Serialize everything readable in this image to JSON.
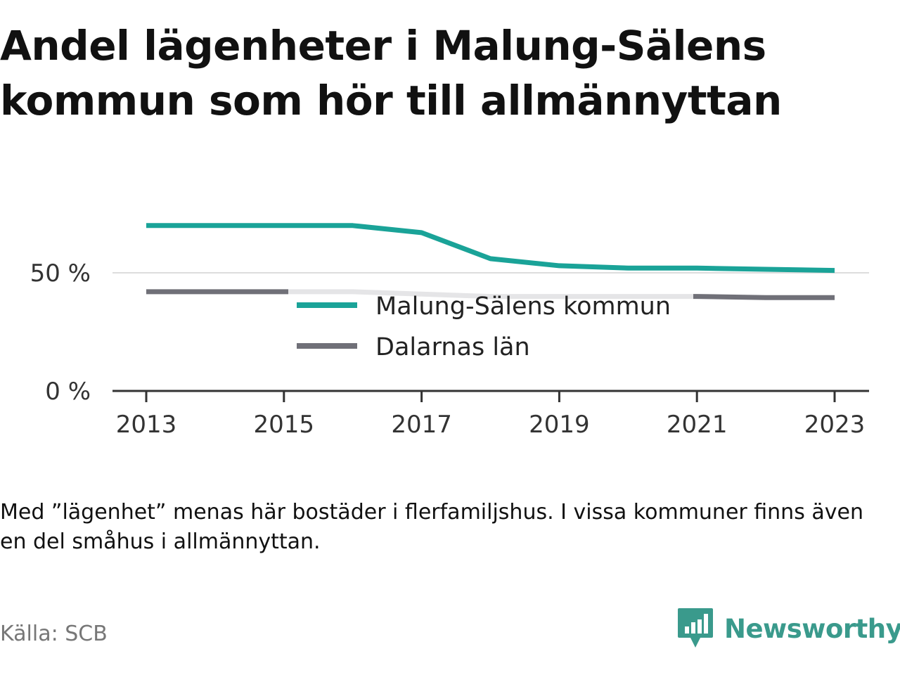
{
  "title": "Andel lägenheter i Malung-Sälens kommun som hör till allmännyttan",
  "note": "Med ”lägenhet” menas här bostäder i flerfamiljshus. I vissa kommuner finns även en del småhus i allmännyttan.",
  "source": "Källa: SCB",
  "brand": {
    "name": "Newsworthy",
    "icon": "newsworthy-logo-icon",
    "color": "#3a9a8c"
  },
  "chart_data": {
    "type": "line",
    "title": "Andel lägenheter i Malung-Sälens kommun som hör till allmännyttan",
    "xlabel": "",
    "ylabel": "",
    "x": [
      2013,
      2014,
      2015,
      2016,
      2017,
      2018,
      2019,
      2020,
      2021,
      2022,
      2023
    ],
    "x_ticks": [
      "2013",
      "2015",
      "2017",
      "2019",
      "2021",
      "2023"
    ],
    "y_ticks": [
      {
        "value": 0,
        "label": "0 %"
      },
      {
        "value": 50,
        "label": "50 %"
      }
    ],
    "ylim": [
      0,
      70
    ],
    "grid": true,
    "legend_position": "center",
    "series": [
      {
        "name": "Malung-Sälens kommun",
        "color": "#1aa398",
        "values": [
          70,
          70,
          70,
          70,
          67,
          56,
          53,
          52,
          52,
          51.5,
          51
        ]
      },
      {
        "name": "Dalarnas län",
        "color": "#707078",
        "values": [
          42,
          42,
          42,
          42,
          41,
          40,
          40,
          40,
          40,
          39.5,
          39.5
        ]
      }
    ]
  }
}
